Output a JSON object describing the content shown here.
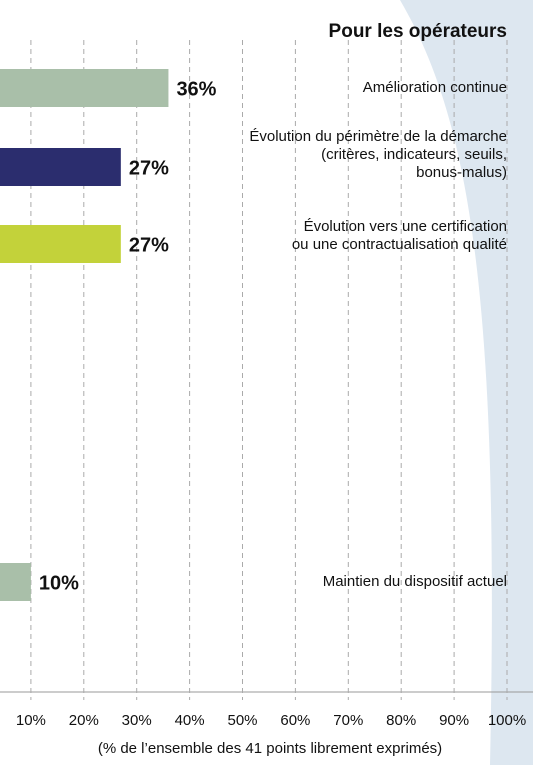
{
  "chart_data": {
    "type": "hbar",
    "title": "Pour les opérateurs",
    "xlabel": "(% de l’ensemble des 41 points librement exprimés)",
    "categories": [
      "Amélioration continue",
      "Évolution du périmètre de la démarche\n(critères, indicateurs, seuils,\nbonus-malus)",
      "Évolution vers une certification\nou une contractualisation qualité",
      "Maintien du dispositif actuel"
    ],
    "values": [
      36,
      27,
      27,
      10
    ],
    "value_labels": [
      "36%",
      "27%",
      "27%",
      "10%"
    ],
    "colors": [
      "#a9bfa9",
      "#2b2d6e",
      "#c3d23a",
      "#a9bfa9"
    ],
    "xlim": [
      0,
      100
    ],
    "xticks": [
      {
        "value": 10,
        "label": "10%"
      },
      {
        "value": 20,
        "label": "20%"
      },
      {
        "value": 30,
        "label": "30%"
      },
      {
        "value": 40,
        "label": "40%"
      },
      {
        "value": 50,
        "label": "50%"
      },
      {
        "value": 60,
        "label": "60%"
      },
      {
        "value": 70,
        "label": "70%"
      },
      {
        "value": 80,
        "label": "80%"
      },
      {
        "value": 90,
        "label": "90%"
      },
      {
        "value": 100,
        "label": "100%"
      }
    ],
    "grid": true
  }
}
